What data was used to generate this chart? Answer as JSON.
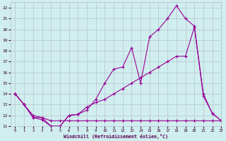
{
  "xlabel": "Windchill (Refroidissement éolien,°C)",
  "xlim": [
    -0.5,
    23
  ],
  "ylim": [
    11,
    22.5
  ],
  "xticks": [
    0,
    1,
    2,
    3,
    4,
    5,
    6,
    7,
    8,
    9,
    10,
    11,
    12,
    13,
    14,
    15,
    16,
    17,
    18,
    19,
    20,
    21,
    22,
    23
  ],
  "yticks": [
    11,
    12,
    13,
    14,
    15,
    16,
    17,
    18,
    19,
    20,
    21,
    22
  ],
  "background_color": "#d0eeed",
  "grid_color": "#b0b8d0",
  "line_color": "#990099",
  "line1_x": [
    0,
    1,
    2,
    3,
    4,
    5,
    6,
    7,
    8,
    9,
    10,
    11,
    12,
    13,
    14,
    15,
    16,
    17,
    18,
    19,
    20,
    21,
    22,
    23
  ],
  "line1_y": [
    14.0,
    13.0,
    11.8,
    11.6,
    11.0,
    11.0,
    12.0,
    12.1,
    12.8,
    13.2,
    13.5,
    14.0,
    14.5,
    15.0,
    15.5,
    16.0,
    16.5,
    17.0,
    17.5,
    17.5,
    20.2,
    13.8,
    12.2,
    11.5
  ],
  "line2_x": [
    0,
    1,
    2,
    3,
    4,
    5,
    6,
    7,
    8,
    9,
    10,
    11,
    12,
    13,
    14,
    15,
    16,
    17,
    18,
    19,
    20,
    21,
    22,
    23
  ],
  "line2_y": [
    14.0,
    13.0,
    11.8,
    11.8,
    11.0,
    11.0,
    12.0,
    12.1,
    12.5,
    13.5,
    15.0,
    16.3,
    16.5,
    18.3,
    15.0,
    19.3,
    20.0,
    21.0,
    22.2,
    21.0,
    20.3,
    14.0,
    12.2,
    11.5
  ],
  "line3_x": [
    0,
    1,
    2,
    3,
    4,
    5,
    6,
    7,
    8,
    9,
    10,
    11,
    12,
    13,
    14,
    15,
    16,
    17,
    18,
    19,
    20,
    21,
    22,
    23
  ],
  "line3_y": [
    14.0,
    13.0,
    12.0,
    11.8,
    11.5,
    11.5,
    11.5,
    11.5,
    11.5,
    11.5,
    11.5,
    11.5,
    11.5,
    11.5,
    11.5,
    11.5,
    11.5,
    11.5,
    11.5,
    11.5,
    11.5,
    11.5,
    11.5,
    11.5
  ]
}
